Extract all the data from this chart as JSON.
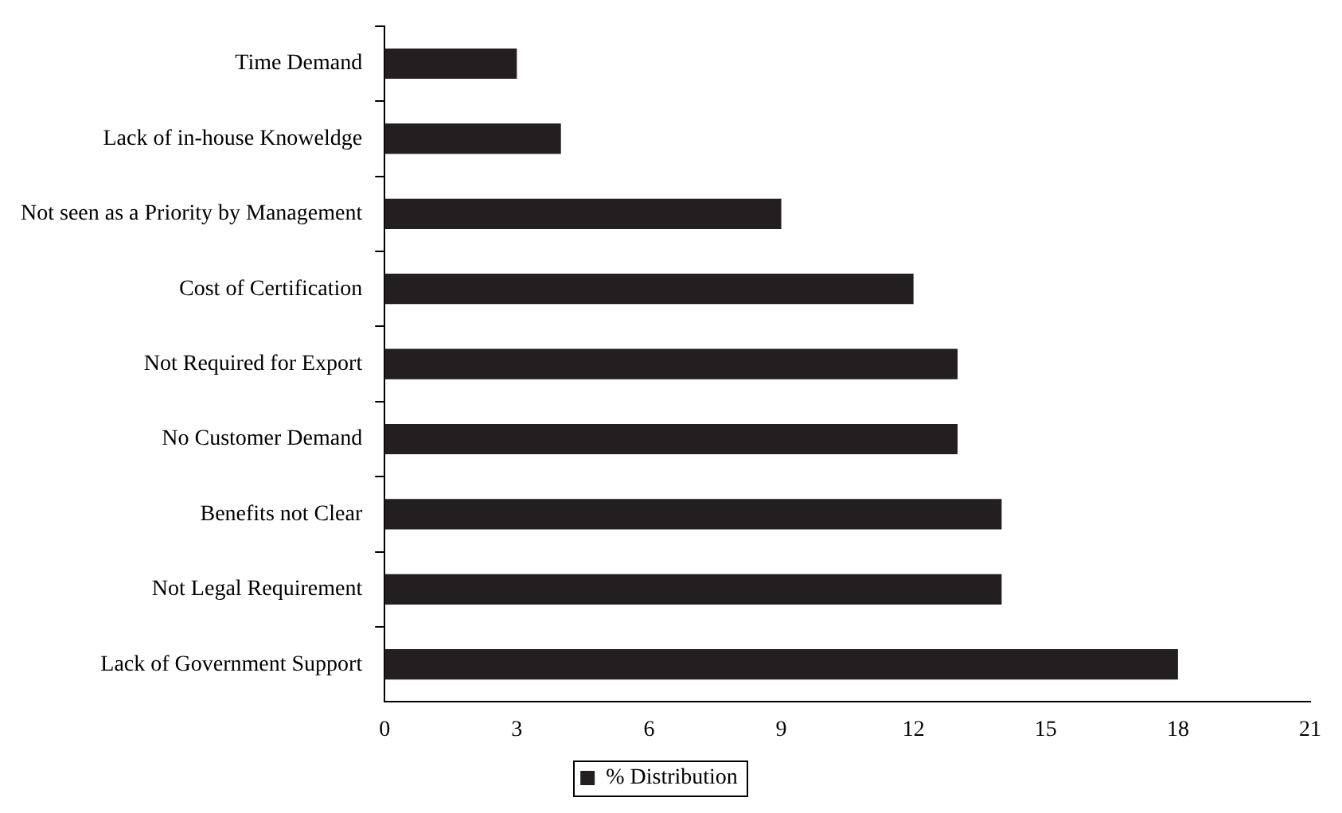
{
  "chart_data": {
    "type": "bar",
    "orientation": "horizontal",
    "categories": [
      "Time Demand",
      "Lack of in-house Knoweldge",
      "Not seen as a Priority by Management",
      "Cost of Certification",
      "Not Required for Export",
      "No Customer Demand",
      "Benefits not Clear",
      "Not Legal Requirement",
      "Lack of Government Support"
    ],
    "series": [
      {
        "name": "% Distribution",
        "color": "#231f20",
        "values": [
          3,
          4,
          9,
          12,
          13,
          13,
          14,
          14,
          18
        ]
      }
    ],
    "xlim": [
      0,
      21
    ],
    "xticks": [
      0,
      3,
      6,
      9,
      12,
      15,
      18,
      21
    ],
    "grid": false,
    "legend": "bottom"
  }
}
